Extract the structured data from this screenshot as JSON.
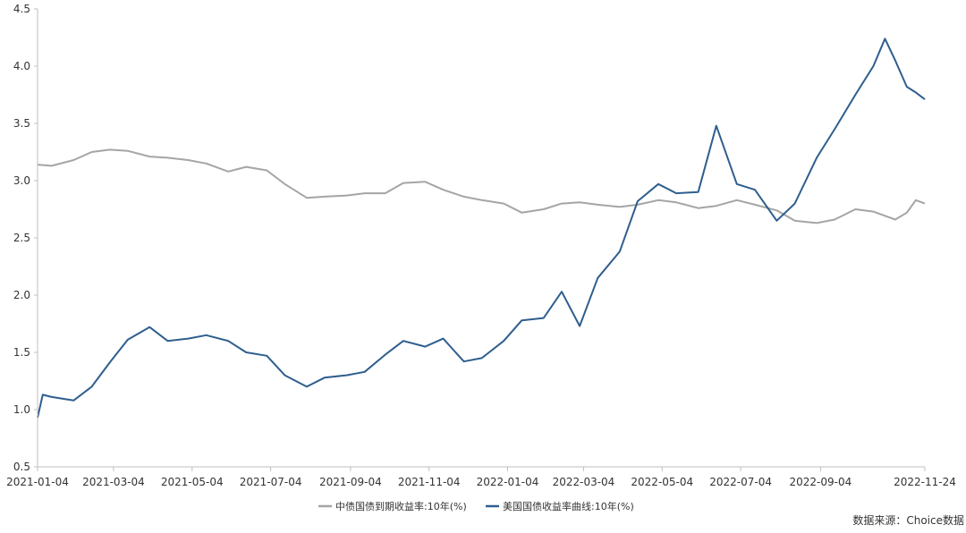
{
  "chart_data": {
    "type": "line",
    "title": "",
    "xlabel": "",
    "ylabel": "",
    "ylim": [
      0.5,
      4.5
    ],
    "y_ticks": [
      "0.5",
      "1.0",
      "1.5",
      "2.0",
      "2.5",
      "3.0",
      "3.5",
      "4.0",
      "4.5"
    ],
    "x_ticks": [
      "2021-01-04",
      "2021-03-04",
      "2021-05-04",
      "2021-07-04",
      "2021-09-04",
      "2021-11-04",
      "2022-01-04",
      "2022-03-04",
      "2022-05-04",
      "2022-07-04",
      "2022-09-04",
      "2022-11-24"
    ],
    "xlim": [
      "2021-01-04",
      "2022-11-24"
    ],
    "grid": false,
    "legend_position": "bottom",
    "series": [
      {
        "name": "中债国债到期收益率:10年(%)",
        "color": "#a5a5a5",
        "points": [
          [
            "2021-01-04",
            3.14
          ],
          [
            "2021-01-15",
            3.13
          ],
          [
            "2021-02-01",
            3.18
          ],
          [
            "2021-02-15",
            3.25
          ],
          [
            "2021-03-01",
            3.27
          ],
          [
            "2021-03-15",
            3.26
          ],
          [
            "2021-04-01",
            3.21
          ],
          [
            "2021-04-15",
            3.2
          ],
          [
            "2021-05-01",
            3.18
          ],
          [
            "2021-05-15",
            3.15
          ],
          [
            "2021-06-01",
            3.08
          ],
          [
            "2021-06-15",
            3.12
          ],
          [
            "2021-07-01",
            3.09
          ],
          [
            "2021-07-15",
            2.97
          ],
          [
            "2021-08-01",
            2.85
          ],
          [
            "2021-08-15",
            2.86
          ],
          [
            "2021-09-01",
            2.87
          ],
          [
            "2021-09-15",
            2.89
          ],
          [
            "2021-10-01",
            2.89
          ],
          [
            "2021-10-15",
            2.98
          ],
          [
            "2021-11-01",
            2.99
          ],
          [
            "2021-11-15",
            2.92
          ],
          [
            "2021-12-01",
            2.86
          ],
          [
            "2021-12-15",
            2.83
          ],
          [
            "2022-01-01",
            2.8
          ],
          [
            "2022-01-15",
            2.72
          ],
          [
            "2022-02-01",
            2.75
          ],
          [
            "2022-02-15",
            2.8
          ],
          [
            "2022-03-01",
            2.81
          ],
          [
            "2022-03-15",
            2.79
          ],
          [
            "2022-04-01",
            2.77
          ],
          [
            "2022-04-15",
            2.79
          ],
          [
            "2022-05-01",
            2.83
          ],
          [
            "2022-05-15",
            2.81
          ],
          [
            "2022-06-01",
            2.76
          ],
          [
            "2022-06-15",
            2.78
          ],
          [
            "2022-07-01",
            2.83
          ],
          [
            "2022-07-15",
            2.79
          ],
          [
            "2022-08-01",
            2.74
          ],
          [
            "2022-08-15",
            2.65
          ],
          [
            "2022-09-01",
            2.63
          ],
          [
            "2022-09-15",
            2.66
          ],
          [
            "2022-10-01",
            2.75
          ],
          [
            "2022-10-15",
            2.73
          ],
          [
            "2022-11-01",
            2.66
          ],
          [
            "2022-11-10",
            2.72
          ],
          [
            "2022-11-17",
            2.83
          ],
          [
            "2022-11-24",
            2.8
          ]
        ]
      },
      {
        "name": "美国国债收益率曲线:10年(%)",
        "color": "#2e5e8e",
        "points": [
          [
            "2021-01-04",
            0.93
          ],
          [
            "2021-01-08",
            1.13
          ],
          [
            "2021-01-15",
            1.11
          ],
          [
            "2021-02-01",
            1.08
          ],
          [
            "2021-02-15",
            1.2
          ],
          [
            "2021-03-01",
            1.41
          ],
          [
            "2021-03-15",
            1.61
          ],
          [
            "2021-04-01",
            1.72
          ],
          [
            "2021-04-15",
            1.6
          ],
          [
            "2021-05-01",
            1.62
          ],
          [
            "2021-05-15",
            1.65
          ],
          [
            "2021-06-01",
            1.6
          ],
          [
            "2021-06-15",
            1.5
          ],
          [
            "2021-07-01",
            1.47
          ],
          [
            "2021-07-15",
            1.3
          ],
          [
            "2021-08-01",
            1.2
          ],
          [
            "2021-08-15",
            1.28
          ],
          [
            "2021-09-01",
            1.3
          ],
          [
            "2021-09-15",
            1.33
          ],
          [
            "2021-10-01",
            1.48
          ],
          [
            "2021-10-15",
            1.6
          ],
          [
            "2021-11-01",
            1.55
          ],
          [
            "2021-11-15",
            1.62
          ],
          [
            "2021-12-01",
            1.42
          ],
          [
            "2021-12-15",
            1.45
          ],
          [
            "2022-01-01",
            1.6
          ],
          [
            "2022-01-15",
            1.78
          ],
          [
            "2022-02-01",
            1.8
          ],
          [
            "2022-02-15",
            2.03
          ],
          [
            "2022-03-01",
            1.73
          ],
          [
            "2022-03-15",
            2.15
          ],
          [
            "2022-04-01",
            2.38
          ],
          [
            "2022-04-15",
            2.82
          ],
          [
            "2022-05-01",
            2.97
          ],
          [
            "2022-05-15",
            2.89
          ],
          [
            "2022-06-01",
            2.9
          ],
          [
            "2022-06-15",
            3.48
          ],
          [
            "2022-07-01",
            2.97
          ],
          [
            "2022-07-15",
            2.92
          ],
          [
            "2022-08-01",
            2.65
          ],
          [
            "2022-08-15",
            2.8
          ],
          [
            "2022-09-01",
            3.2
          ],
          [
            "2022-09-15",
            3.45
          ],
          [
            "2022-10-01",
            3.75
          ],
          [
            "2022-10-15",
            4.0
          ],
          [
            "2022-10-24",
            4.24
          ],
          [
            "2022-11-01",
            4.05
          ],
          [
            "2022-11-10",
            3.82
          ],
          [
            "2022-11-17",
            3.77
          ],
          [
            "2022-11-24",
            3.71
          ]
        ]
      }
    ],
    "source": "数据来源：Choice数据"
  }
}
